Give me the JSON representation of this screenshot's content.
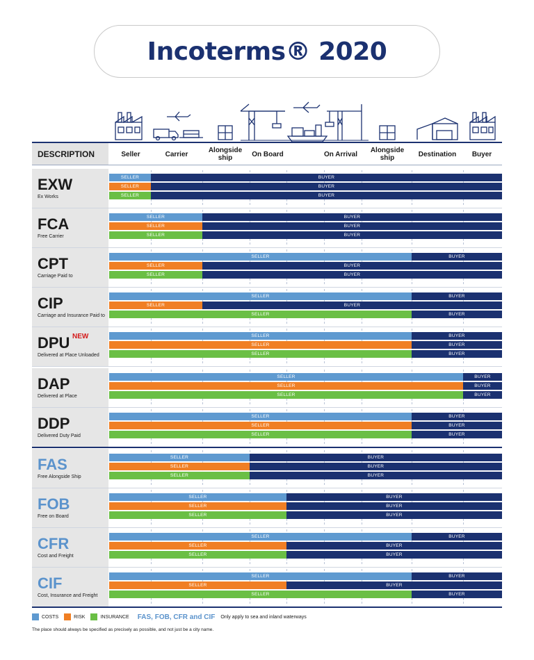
{
  "title": "Incoterms® 2020",
  "header": {
    "description": "DESCRIPTION",
    "columns": [
      "Seller",
      "Carrier",
      "Alongside\nship",
      "On Board",
      "On Arrival",
      "Alongside\nship",
      "Destination",
      "Buyer"
    ]
  },
  "terms": [
    {
      "code": "EXW",
      "name": "Ex Works",
      "is_new": false,
      "sea_only": false,
      "bars": [
        {
          "type": "costs",
          "seller_label": "SELLER",
          "buyer_label": "BUYER",
          "transfer_point": "seller"
        },
        {
          "type": "risk",
          "seller_label": "SELLER",
          "buyer_label": "BUYER",
          "transfer_point": "seller"
        },
        {
          "type": "insurance",
          "seller_label": "SELLER",
          "buyer_label": "BUYER",
          "transfer_point": "seller"
        }
      ]
    },
    {
      "code": "FCA",
      "name": "Free Carrier",
      "is_new": false,
      "sea_only": false,
      "bars": [
        {
          "type": "costs",
          "seller_label": "SELLER",
          "buyer_label": "BUYER",
          "transfer_point": "carrier"
        },
        {
          "type": "risk",
          "seller_label": "SELLER",
          "buyer_label": "BUYER",
          "transfer_point": "carrier"
        },
        {
          "type": "insurance",
          "seller_label": "SELLER",
          "buyer_label": "BUYER",
          "transfer_point": "carrier"
        }
      ]
    },
    {
      "code": "CPT",
      "name": "Carriage Paid to",
      "is_new": false,
      "sea_only": false,
      "bars": [
        {
          "type": "costs",
          "seller_label": "SELLER",
          "buyer_label": "BUYER",
          "transfer_point": "on arrival"
        },
        {
          "type": "risk",
          "seller_label": "SELLER",
          "buyer_label": "BUYER",
          "transfer_point": "carrier"
        },
        {
          "type": "insurance",
          "seller_label": "SELLER",
          "buyer_label": "BUYER",
          "transfer_point": "carrier"
        }
      ]
    },
    {
      "code": "CIP",
      "name": "Carriage and Insurance Paid to",
      "is_new": false,
      "sea_only": false,
      "bars": [
        {
          "type": "costs",
          "seller_label": "SELLER",
          "buyer_label": "BUYER",
          "transfer_point": "on arrival"
        },
        {
          "type": "risk",
          "seller_label": "SELLER",
          "buyer_label": "BUYER",
          "transfer_point": "carrier"
        },
        {
          "type": "insurance",
          "seller_label": "SELLER",
          "buyer_label": "BUYER",
          "transfer_point": "on arrival"
        }
      ]
    },
    {
      "code": "DPU",
      "name": "Delivered at Place Unloaded",
      "is_new": true,
      "new_label": "NEW",
      "sea_only": false,
      "bars": [
        {
          "type": "costs",
          "seller_label": "SELLER",
          "buyer_label": "BUYER",
          "transfer_point": "on arrival"
        },
        {
          "type": "risk",
          "seller_label": "SELLER",
          "buyer_label": "BUYER",
          "transfer_point": "on arrival"
        },
        {
          "type": "insurance",
          "seller_label": "SELLER",
          "buyer_label": "BUYER",
          "transfer_point": "on arrival"
        }
      ]
    },
    {
      "code": "DAP",
      "name": "Delivered at Place",
      "is_new": false,
      "sea_only": false,
      "bars": [
        {
          "type": "costs",
          "seller_label": "SELLER",
          "buyer_label": "BUYER",
          "transfer_point": "destination"
        },
        {
          "type": "risk",
          "seller_label": "SELLER",
          "buyer_label": "BUYER",
          "transfer_point": "destination"
        },
        {
          "type": "insurance",
          "seller_label": "SELLER",
          "buyer_label": "BUYER",
          "transfer_point": "destination"
        }
      ]
    },
    {
      "code": "DDP",
      "name": "Delivered Duty Paid",
      "is_new": false,
      "sea_only": false,
      "bars": [
        {
          "type": "costs",
          "seller_label": "SELLER",
          "buyer_label": "BUYER",
          "transfer_point": "on arrival"
        },
        {
          "type": "risk",
          "seller_label": "SELLER",
          "buyer_label": "BUYER",
          "transfer_point": "on arrival"
        },
        {
          "type": "insurance",
          "seller_label": "SELLER",
          "buyer_label": "BUYER",
          "transfer_point": "on arrival"
        }
      ]
    },
    {
      "code": "FAS",
      "name": "Free Alongside Ship",
      "is_new": false,
      "sea_only": true,
      "bars": [
        {
          "type": "costs",
          "seller_label": "SELLER",
          "buyer_label": "BUYER",
          "transfer_point": "alongside ship"
        },
        {
          "type": "risk",
          "seller_label": "SELLER",
          "buyer_label": "BUYER",
          "transfer_point": "alongside ship"
        },
        {
          "type": "insurance",
          "seller_label": "SELLER",
          "buyer_label": "BUYER",
          "transfer_point": "alongside ship"
        }
      ]
    },
    {
      "code": "FOB",
      "name": "Free on Board",
      "is_new": false,
      "sea_only": true,
      "bars": [
        {
          "type": "costs",
          "seller_label": "SELLER",
          "buyer_label": "BUYER",
          "transfer_point": "on board"
        },
        {
          "type": "risk",
          "seller_label": "SELLER",
          "buyer_label": "BUYER",
          "transfer_point": "on board"
        },
        {
          "type": "insurance",
          "seller_label": "SELLER",
          "buyer_label": "BUYER",
          "transfer_point": "on board"
        }
      ]
    },
    {
      "code": "CFR",
      "name": "Cost and Freight",
      "is_new": false,
      "sea_only": true,
      "bars": [
        {
          "type": "costs",
          "seller_label": "SELLER",
          "buyer_label": "BUYER",
          "transfer_point": "on arrival"
        },
        {
          "type": "risk",
          "seller_label": "SELLER",
          "buyer_label": "BUYER",
          "transfer_point": "on board"
        },
        {
          "type": "insurance",
          "seller_label": "SELLER",
          "buyer_label": "BUYER",
          "transfer_point": "on board"
        }
      ]
    },
    {
      "code": "CIF",
      "name": "Cost, Insurance and Freight",
      "is_new": false,
      "sea_only": true,
      "bars": [
        {
          "type": "costs",
          "seller_label": "SELLER",
          "buyer_label": "BUYER",
          "transfer_point": "on arrival"
        },
        {
          "type": "risk",
          "seller_label": "SELLER",
          "buyer_label": "BUYER",
          "transfer_point": "on board"
        },
        {
          "type": "insurance",
          "seller_label": "SELLER",
          "buyer_label": "BUYER",
          "transfer_point": "on arrival"
        }
      ]
    }
  ],
  "legend": {
    "costs": "COSTS",
    "risk": "RISK",
    "insurance": "INSURANCE",
    "sea_terms": "FAS, FOB, CFR and CIF",
    "sea_note": "Only apply to sea and inland waterways"
  },
  "footnote": "The place should always be specified as precisely as possible, and not just be a city name.",
  "colors": {
    "navy": "#1b3170",
    "costs": "#5f9ad0",
    "risk": "#f07f24",
    "insurance": "#6abf45",
    "sea_code": "#5b93cc",
    "new_badge": "#d41a1a"
  },
  "icons": [
    "factory-icon",
    "truck-icon",
    "airplane-icon",
    "warehouse-icon",
    "crane-icon",
    "cargo-ship-icon",
    "container-stack-icon"
  ]
}
